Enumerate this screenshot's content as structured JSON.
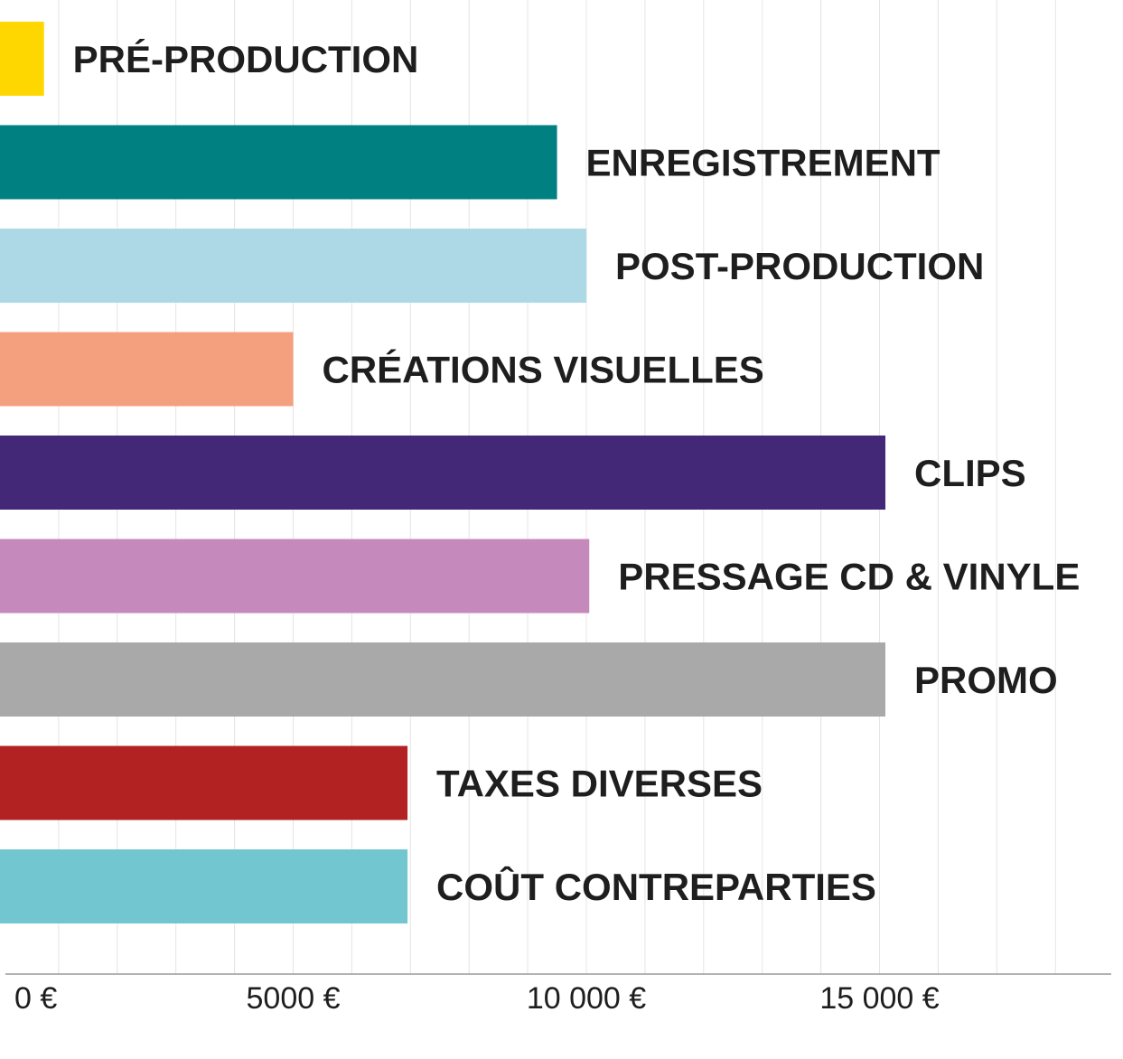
{
  "chart_data": {
    "type": "bar",
    "orientation": "horizontal",
    "categories": [
      "PRÉ-PRODUCTION",
      "ENREGISTREMENT",
      "POST-PRODUCTION",
      "CRÉATIONS VISUELLES",
      "CLIPS",
      "PRESSAGE CD & VINYLE",
      "PROMO",
      "TAXES DIVERSES",
      "COÛT CONTREPARTIES"
    ],
    "values": [
      750,
      9500,
      10000,
      5000,
      15100,
      10050,
      15100,
      6950,
      6950
    ],
    "colors": [
      "#FFD700",
      "#008080",
      "#ADD8E6",
      "#F4A07E",
      "#432878",
      "#C689BC",
      "#A9A9A9",
      "#B22222",
      "#72C6D0"
    ],
    "xlim": [
      0,
      19000
    ],
    "x_ticks": [
      0,
      5000,
      10000,
      15000
    ],
    "x_tick_labels": [
      "0 €",
      "5000 €",
      "10 000 €",
      "15 000 €"
    ],
    "grid_step": 1000,
    "grid": true,
    "title": "",
    "xlabel": "",
    "ylabel": ""
  }
}
